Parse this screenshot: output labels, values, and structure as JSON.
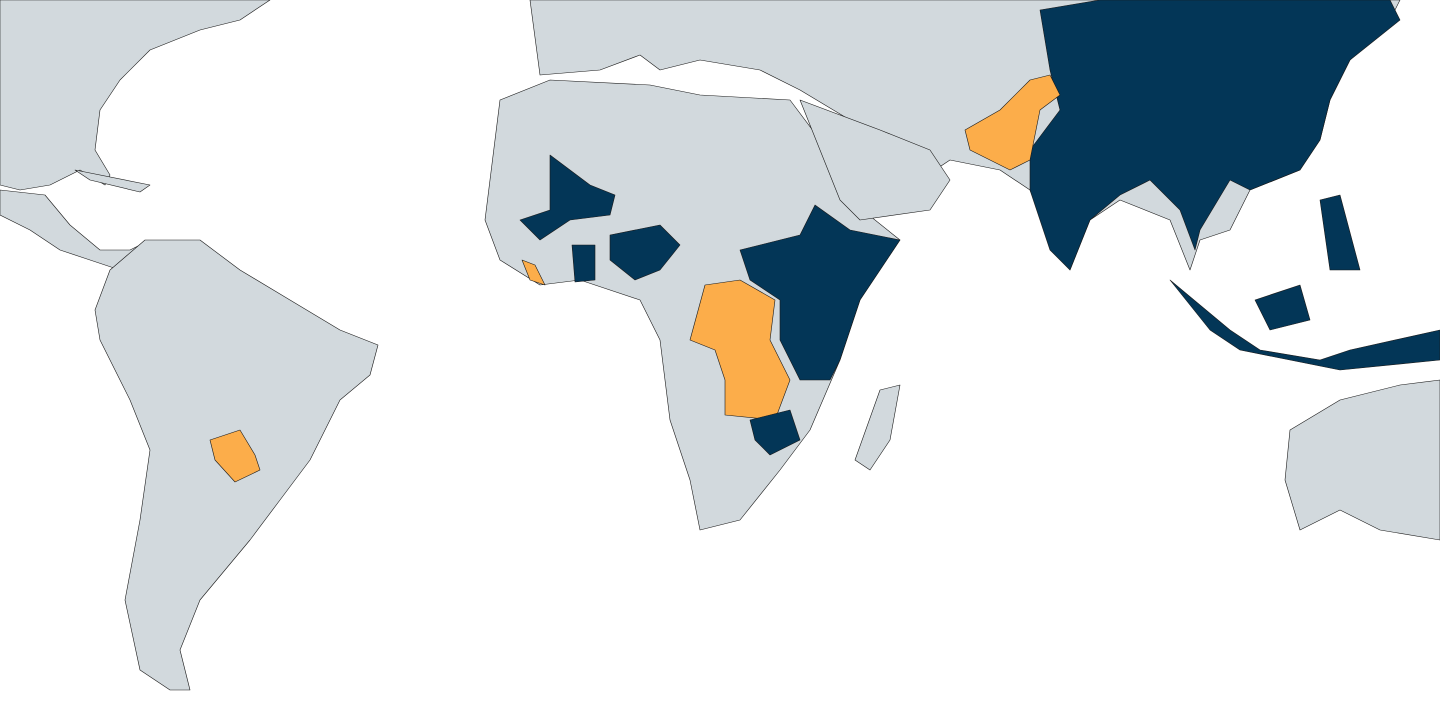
{
  "map": {
    "colors": {
      "water": "#ffffff",
      "land": "#d2d9dd",
      "highlight_dark": "#033657",
      "highlight_light": "#fcad4a",
      "border": "#1a1a1a"
    }
  }
}
